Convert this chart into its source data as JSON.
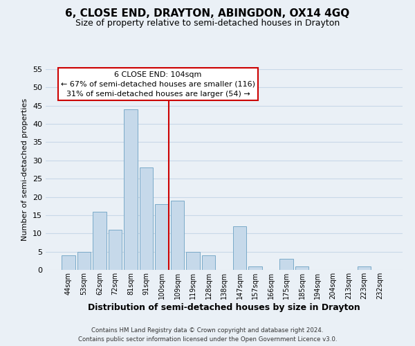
{
  "title": "6, CLOSE END, DRAYTON, ABINGDON, OX14 4GQ",
  "subtitle": "Size of property relative to semi-detached houses in Drayton",
  "xlabel": "Distribution of semi-detached houses by size in Drayton",
  "ylabel": "Number of semi-detached properties",
  "footer_line1": "Contains HM Land Registry data © Crown copyright and database right 2024.",
  "footer_line2": "Contains public sector information licensed under the Open Government Licence v3.0.",
  "bins": [
    "44sqm",
    "53sqm",
    "62sqm",
    "72sqm",
    "81sqm",
    "91sqm",
    "100sqm",
    "109sqm",
    "119sqm",
    "128sqm",
    "138sqm",
    "147sqm",
    "157sqm",
    "166sqm",
    "175sqm",
    "185sqm",
    "194sqm",
    "204sqm",
    "213sqm",
    "223sqm",
    "232sqm"
  ],
  "counts": [
    4,
    5,
    16,
    11,
    44,
    28,
    18,
    19,
    5,
    4,
    0,
    12,
    1,
    0,
    3,
    1,
    0,
    0,
    0,
    1,
    0
  ],
  "bar_color": "#c6d9ea",
  "bar_edge_color": "#7aaac8",
  "grid_color": "#c8d8e8",
  "annotation_box_edge": "#cc0000",
  "annotation_text_line1": "6 CLOSE END: 104sqm",
  "annotation_text_line2": "← 67% of semi-detached houses are smaller (116)",
  "annotation_text_line3": "31% of semi-detached houses are larger (54) →",
  "ref_line_color": "#cc0000",
  "ylim": [
    0,
    55
  ],
  "yticks": [
    0,
    5,
    10,
    15,
    20,
    25,
    30,
    35,
    40,
    45,
    50,
    55
  ],
  "bg_color": "#eaf0f6",
  "title_fontsize": 11,
  "subtitle_fontsize": 9
}
